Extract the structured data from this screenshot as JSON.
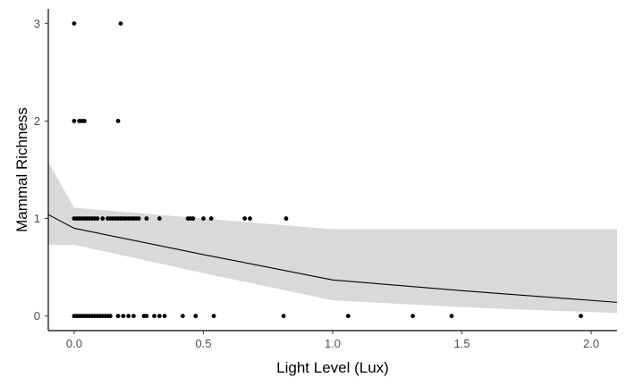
{
  "chart_data": {
    "type": "scatter",
    "title": "",
    "xlabel": "Light Level (Lux)",
    "ylabel": "Mammal Richness",
    "xlim": [
      -0.1,
      2.1
    ],
    "ylim": [
      -0.15,
      3.15
    ],
    "x_ticks": [
      0.0,
      0.5,
      1.0,
      1.5,
      2.0
    ],
    "x_tick_labels": [
      "0.0",
      "0.5",
      "1.0",
      "1.5",
      "2.0"
    ],
    "y_ticks": [
      0,
      1,
      2,
      3
    ],
    "y_tick_labels": [
      "0",
      "1",
      "2",
      "3"
    ],
    "grid": false,
    "legend": "none",
    "colors": {
      "points": "#000000",
      "line": "#000000",
      "ribbon": "#d9d9d9",
      "axis": "#000000"
    },
    "points": [
      {
        "x": 0.0,
        "y": 3
      },
      {
        "x": 0.18,
        "y": 3
      },
      {
        "x": 0.0,
        "y": 2
      },
      {
        "x": 0.02,
        "y": 2
      },
      {
        "x": 0.03,
        "y": 2
      },
      {
        "x": 0.04,
        "y": 2
      },
      {
        "x": 0.17,
        "y": 2
      },
      {
        "x": 0.0,
        "y": 1
      },
      {
        "x": 0.01,
        "y": 1
      },
      {
        "x": 0.02,
        "y": 1
      },
      {
        "x": 0.03,
        "y": 1
      },
      {
        "x": 0.04,
        "y": 1
      },
      {
        "x": 0.05,
        "y": 1
      },
      {
        "x": 0.06,
        "y": 1
      },
      {
        "x": 0.07,
        "y": 1
      },
      {
        "x": 0.08,
        "y": 1
      },
      {
        "x": 0.09,
        "y": 1
      },
      {
        "x": 0.11,
        "y": 1
      },
      {
        "x": 0.13,
        "y": 1
      },
      {
        "x": 0.14,
        "y": 1
      },
      {
        "x": 0.15,
        "y": 1
      },
      {
        "x": 0.16,
        "y": 1
      },
      {
        "x": 0.17,
        "y": 1
      },
      {
        "x": 0.18,
        "y": 1
      },
      {
        "x": 0.19,
        "y": 1
      },
      {
        "x": 0.2,
        "y": 1
      },
      {
        "x": 0.21,
        "y": 1
      },
      {
        "x": 0.22,
        "y": 1
      },
      {
        "x": 0.23,
        "y": 1
      },
      {
        "x": 0.24,
        "y": 1
      },
      {
        "x": 0.25,
        "y": 1
      },
      {
        "x": 0.28,
        "y": 1
      },
      {
        "x": 0.33,
        "y": 1
      },
      {
        "x": 0.44,
        "y": 1
      },
      {
        "x": 0.45,
        "y": 1
      },
      {
        "x": 0.46,
        "y": 1
      },
      {
        "x": 0.5,
        "y": 1
      },
      {
        "x": 0.53,
        "y": 1
      },
      {
        "x": 0.66,
        "y": 1
      },
      {
        "x": 0.68,
        "y": 1
      },
      {
        "x": 0.82,
        "y": 1
      },
      {
        "x": 0.0,
        "y": 0
      },
      {
        "x": 0.01,
        "y": 0
      },
      {
        "x": 0.02,
        "y": 0
      },
      {
        "x": 0.03,
        "y": 0
      },
      {
        "x": 0.04,
        "y": 0
      },
      {
        "x": 0.05,
        "y": 0
      },
      {
        "x": 0.06,
        "y": 0
      },
      {
        "x": 0.07,
        "y": 0
      },
      {
        "x": 0.08,
        "y": 0
      },
      {
        "x": 0.09,
        "y": 0
      },
      {
        "x": 0.1,
        "y": 0
      },
      {
        "x": 0.11,
        "y": 0
      },
      {
        "x": 0.12,
        "y": 0
      },
      {
        "x": 0.13,
        "y": 0
      },
      {
        "x": 0.14,
        "y": 0
      },
      {
        "x": 0.17,
        "y": 0
      },
      {
        "x": 0.19,
        "y": 0
      },
      {
        "x": 0.21,
        "y": 0
      },
      {
        "x": 0.23,
        "y": 0
      },
      {
        "x": 0.27,
        "y": 0
      },
      {
        "x": 0.28,
        "y": 0
      },
      {
        "x": 0.31,
        "y": 0
      },
      {
        "x": 0.33,
        "y": 0
      },
      {
        "x": 0.35,
        "y": 0
      },
      {
        "x": 0.42,
        "y": 0
      },
      {
        "x": 0.47,
        "y": 0
      },
      {
        "x": 0.54,
        "y": 0
      },
      {
        "x": 0.81,
        "y": 0
      },
      {
        "x": 1.06,
        "y": 0
      },
      {
        "x": 1.31,
        "y": 0
      },
      {
        "x": 1.46,
        "y": 0
      },
      {
        "x": 1.96,
        "y": 0
      }
    ],
    "fit_line": [
      {
        "x": -0.1,
        "y": 1.04
      },
      {
        "x": 0.0,
        "y": 0.9
      },
      {
        "x": 0.5,
        "y": 0.63
      },
      {
        "x": 1.0,
        "y": 0.37
      },
      {
        "x": 1.5,
        "y": 0.26
      },
      {
        "x": 2.1,
        "y": 0.14
      }
    ],
    "ribbon": [
      {
        "x": -0.1,
        "upper": 1.58,
        "lower": 0.73
      },
      {
        "x": 0.0,
        "upper": 1.11,
        "lower": 0.73
      },
      {
        "x": 0.5,
        "upper": 1.0,
        "lower": 0.44
      },
      {
        "x": 1.0,
        "upper": 0.89,
        "lower": 0.16
      },
      {
        "x": 1.5,
        "upper": 0.89,
        "lower": 0.09
      },
      {
        "x": 2.1,
        "upper": 0.89,
        "lower": 0.03
      }
    ]
  }
}
